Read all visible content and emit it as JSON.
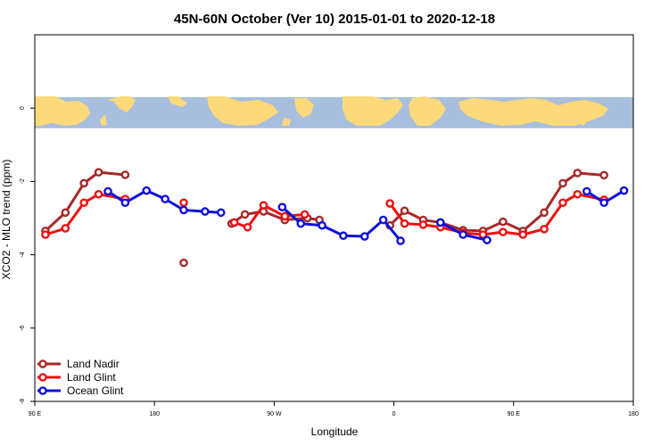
{
  "chart_data": {
    "type": "line",
    "title": "45N-60N October (Ver 10)   2015-01-01 to 2020-12-18",
    "xlabel": "Longitude",
    "ylabel": "XCO2 - MLO trend (ppm)",
    "xlim": [
      0,
      450
    ],
    "ylim": [
      -8,
      2
    ],
    "x_ticks": [
      {
        "value": 0,
        "label": "90 E"
      },
      {
        "value": 90,
        "label": "180"
      },
      {
        "value": 180,
        "label": "90 W"
      },
      {
        "value": 270,
        "label": "0"
      },
      {
        "value": 360,
        "label": "90 E"
      },
      {
        "value": 450,
        "label": "180"
      }
    ],
    "y_ticks": [
      {
        "value": 0,
        "label": "0"
      },
      {
        "value": -2,
        "label": "-2"
      },
      {
        "value": -4,
        "label": "-4"
      },
      {
        "value": -6,
        "label": "-6"
      },
      {
        "value": -8,
        "label": "-8"
      }
    ],
    "map_strip": {
      "ymin": -0.55,
      "ymax": 0.3,
      "ocean_color": "#A8BEDD",
      "land_color": "#FCD97A"
    },
    "legend_position": "bottom-left",
    "series": [
      {
        "name": "Land Nadir",
        "color": "#A52A2A",
        "points": [
          [
            8,
            -3.35
          ],
          [
            23,
            -2.85
          ],
          [
            37,
            -2.05
          ],
          [
            48,
            -1.75
          ],
          [
            68,
            -1.82
          ],
          [
            null,
            null
          ],
          [
            112,
            -4.22
          ],
          [
            null,
            null
          ],
          [
            148,
            -3.15
          ],
          [
            158,
            -2.9
          ],
          [
            172,
            -2.82
          ],
          [
            188,
            -3.05
          ],
          [
            205,
            -3.0
          ],
          [
            214,
            -3.05
          ],
          [
            null,
            null
          ],
          [
            267,
            -3.2
          ],
          [
            278,
            -2.8
          ],
          [
            292,
            -3.05
          ],
          [
            305,
            -3.12
          ],
          [
            322,
            -3.33
          ],
          [
            337,
            -3.35
          ],
          [
            352,
            -3.1
          ],
          [
            367,
            -3.35
          ],
          [
            383,
            -2.85
          ],
          [
            397,
            -2.05
          ],
          [
            408,
            -1.77
          ],
          [
            428,
            -1.83
          ]
        ]
      },
      {
        "name": "Land Glint",
        "color": "#EE1111",
        "points": [
          [
            8,
            -3.45
          ],
          [
            23,
            -3.28
          ],
          [
            37,
            -2.58
          ],
          [
            48,
            -2.35
          ],
          [
            68,
            -2.48
          ],
          [
            null,
            null
          ],
          [
            112,
            -2.58
          ],
          [
            null,
            null
          ],
          [
            150,
            -3.12
          ],
          [
            160,
            -3.25
          ],
          [
            172,
            -2.65
          ],
          [
            188,
            -2.95
          ],
          [
            203,
            -2.9
          ],
          [
            null,
            null
          ],
          [
            267,
            -2.6
          ],
          [
            278,
            -3.15
          ],
          [
            292,
            -3.18
          ],
          [
            305,
            -3.25
          ],
          [
            322,
            -3.4
          ],
          [
            337,
            -3.45
          ],
          [
            352,
            -3.38
          ],
          [
            367,
            -3.45
          ],
          [
            383,
            -3.3
          ],
          [
            397,
            -2.58
          ],
          [
            408,
            -2.35
          ],
          [
            428,
            -2.5
          ]
        ]
      },
      {
        "name": "Ocean Glint",
        "color": "#1010DD",
        "points": [
          [
            55,
            -2.27
          ],
          [
            68,
            -2.58
          ],
          [
            84,
            -2.25
          ],
          [
            98,
            -2.48
          ],
          [
            112,
            -2.78
          ],
          [
            128,
            -2.82
          ],
          [
            140,
            -2.85
          ],
          [
            null,
            null
          ],
          [
            186,
            -2.7
          ],
          [
            200,
            -3.15
          ],
          [
            216,
            -3.2
          ],
          [
            232,
            -3.48
          ],
          [
            248,
            -3.5
          ],
          [
            262,
            -3.05
          ],
          [
            275,
            -3.62
          ],
          [
            null,
            null
          ],
          [
            305,
            -3.12
          ],
          [
            322,
            -3.45
          ],
          [
            340,
            -3.6
          ],
          [
            null,
            null
          ],
          [
            415,
            -2.27
          ],
          [
            428,
            -2.58
          ],
          [
            443,
            -2.25
          ]
        ]
      }
    ]
  }
}
